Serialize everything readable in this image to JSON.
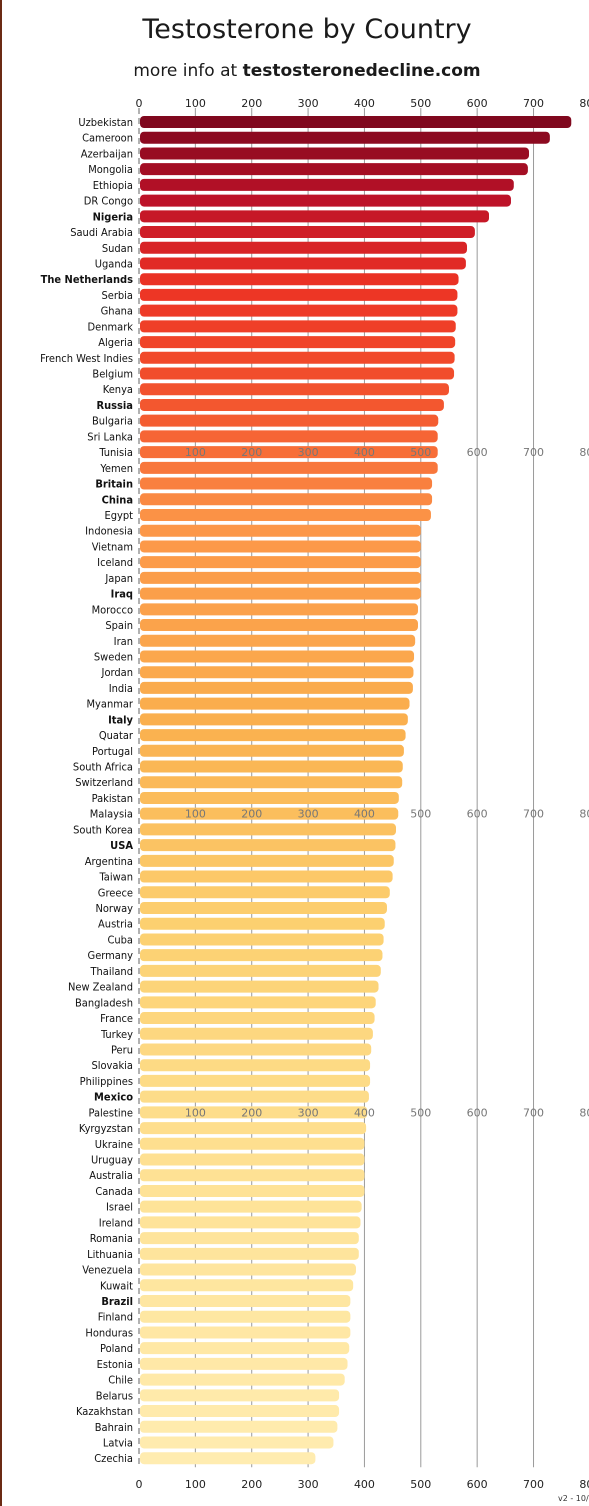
{
  "chart_data": {
    "type": "bar",
    "orientation": "horizontal",
    "title": "Testosterone by Country",
    "subtitle_prefix": "more info at ",
    "subtitle_link": "testosteronedecline.com",
    "xlim": [
      0,
      800
    ],
    "x_ticks": [
      "0",
      "100",
      "200",
      "300",
      "400",
      "500",
      "600",
      "700",
      "800"
    ],
    "grid": true,
    "version_note": "v2 - 10/",
    "categories": [
      "Uzbekistan",
      "Cameroon",
      "Azerbaijan",
      "Mongolia",
      "Ethiopia",
      "DR Congo",
      "Nigeria",
      "Saudi Arabia",
      "Sudan",
      "Uganda",
      "The Netherlands",
      "Serbia",
      "Ghana",
      "Denmark",
      "Algeria",
      "French West Indies",
      "Belgium",
      "Kenya",
      "Russia",
      "Bulgaria",
      "Sri Lanka",
      "Tunisia",
      "Yemen",
      "Britain",
      "China",
      "Egypt",
      "Indonesia",
      "Vietnam",
      "Iceland",
      "Japan",
      "Iraq",
      "Morocco",
      "Spain",
      "Iran",
      "Sweden",
      "Jordan",
      "India",
      "Myanmar",
      "Italy",
      "Quatar",
      "Portugal",
      "South Africa",
      "Switzerland",
      "Pakistan",
      "Malaysia",
      "South Korea",
      "USA",
      "Argentina",
      "Taiwan",
      "Greece",
      "Norway",
      "Austria",
      "Cuba",
      "Germany",
      "Thailand",
      "New Zealand",
      "Bangladesh",
      "France",
      "Turkey",
      "Peru",
      "Slovakia",
      "Philippines",
      "Mexico",
      "Palestine",
      "Kyrgyzstan",
      "Ukraine",
      "Uruguay",
      "Australia",
      "Canada",
      "Israel",
      "Ireland",
      "Romania",
      "Lithuania",
      "Venezuela",
      "Kuwait",
      "Brazil",
      "Finland",
      "Honduras",
      "Poland",
      "Estonia",
      "Chile",
      "Belarus",
      "Kazakhstan",
      "Bahrain",
      "Latvia",
      "Czechia"
    ],
    "values": [
      767,
      729,
      692,
      690,
      665,
      660,
      621,
      596,
      582,
      580,
      567,
      565,
      565,
      562,
      561,
      560,
      559,
      550,
      541,
      531,
      530,
      530,
      530,
      520,
      520,
      518,
      500,
      500,
      500,
      500,
      500,
      495,
      495,
      490,
      488,
      487,
      486,
      480,
      477,
      473,
      470,
      468,
      467,
      461,
      460,
      456,
      455,
      452,
      450,
      445,
      440,
      436,
      434,
      432,
      429,
      425,
      420,
      418,
      415,
      412,
      410,
      410,
      408,
      405,
      403,
      400,
      400,
      400,
      400,
      395,
      393,
      390,
      390,
      385,
      380,
      375,
      375,
      375,
      373,
      370,
      365,
      355,
      355,
      352,
      345,
      313
    ],
    "bold_categories": [
      "Nigeria",
      "The Netherlands",
      "Russia",
      "Britain",
      "China",
      "Iraq",
      "Italy",
      "USA",
      "Mexico",
      "Brazil"
    ],
    "mid_axis_rows": [
      "Tunisia",
      "Malaysia",
      "Palestine"
    ]
  }
}
